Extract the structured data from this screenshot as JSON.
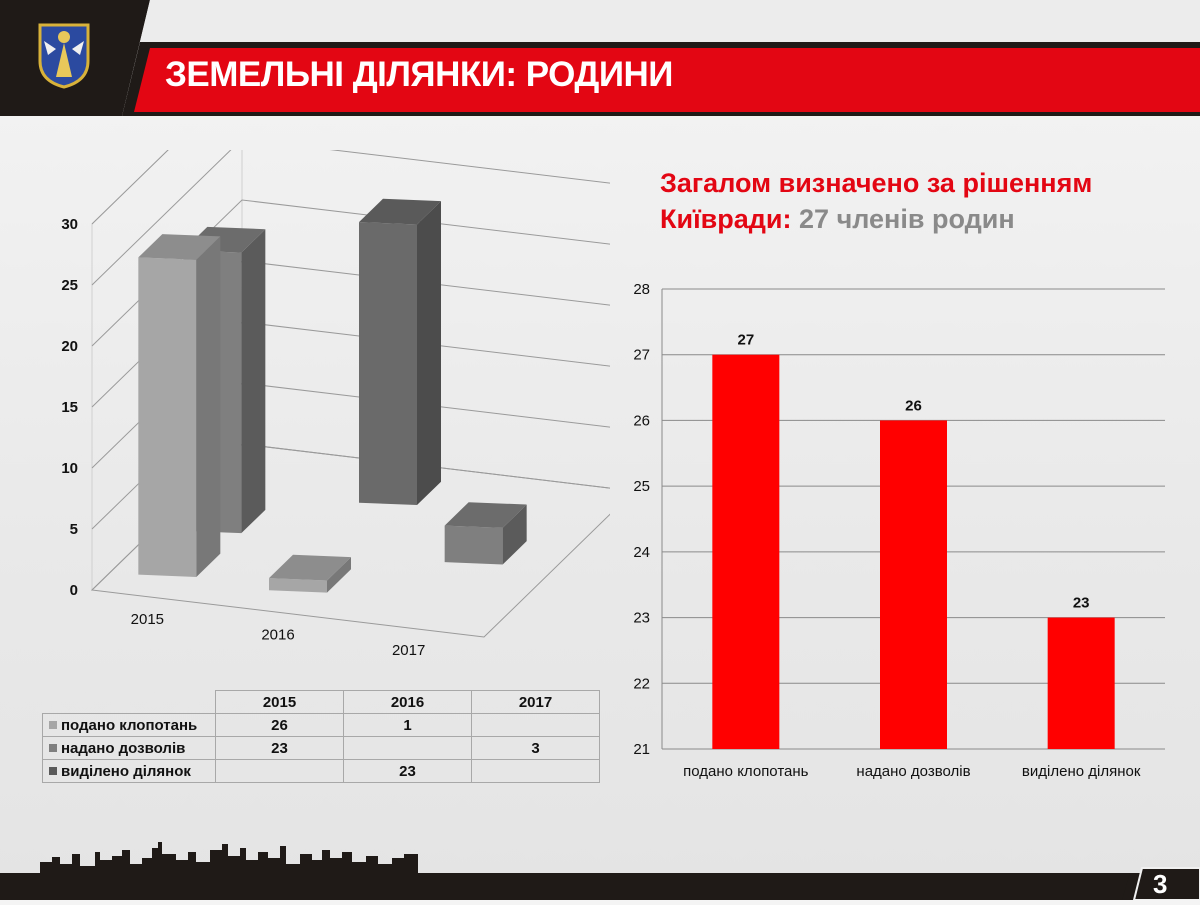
{
  "header": {
    "title": "ЗЕМЕЛЬНІ ДІЛЯНКИ: РОДИНИ",
    "logo": "kyiv-coat-of-arms",
    "colors": {
      "dark": "#1f1a17",
      "red": "#e30613"
    }
  },
  "summary": {
    "line1": "Загалом визначено за рішенням",
    "line2_red": "Київради:",
    "line2_gray": "27 членів родин"
  },
  "chart_data": [
    {
      "type": "bar",
      "projection": "3d",
      "categories": [
        "2015",
        "2016",
        "2017"
      ],
      "ylim": [
        0,
        30
      ],
      "yticks": [
        0,
        5,
        10,
        15,
        20,
        25,
        30
      ],
      "series": [
        {
          "name": "подано клопотань",
          "values": [
            26,
            1,
            null
          ],
          "color": "#a6a6a6"
        },
        {
          "name": "надано дозволів",
          "values": [
            23,
            null,
            3
          ],
          "color": "#7f7f7f"
        },
        {
          "name": "виділено ділянок",
          "values": [
            null,
            23,
            null
          ],
          "color": "#6a6a6a"
        }
      ],
      "table": {
        "headers": [
          "2015",
          "2016",
          "2017"
        ],
        "rows": [
          {
            "label": "подано клопотань",
            "cells": [
              "26",
              "1",
              ""
            ]
          },
          {
            "label": "надано дозволів",
            "cells": [
              "23",
              "",
              "3"
            ]
          },
          {
            "label": "виділено ділянок",
            "cells": [
              "",
              "23",
              ""
            ]
          }
        ]
      }
    },
    {
      "type": "bar",
      "categories": [
        "подано клопотань",
        "надано дозволів",
        "виділено ділянок"
      ],
      "values": [
        27,
        26,
        23
      ],
      "data_labels": [
        "27",
        "26",
        "23"
      ],
      "ylim": [
        21,
        28
      ],
      "yticks": [
        21,
        22,
        23,
        24,
        25,
        26,
        27,
        28
      ],
      "grid": true,
      "color": "#ff0000"
    }
  ],
  "footer": {
    "page_number": "3"
  }
}
